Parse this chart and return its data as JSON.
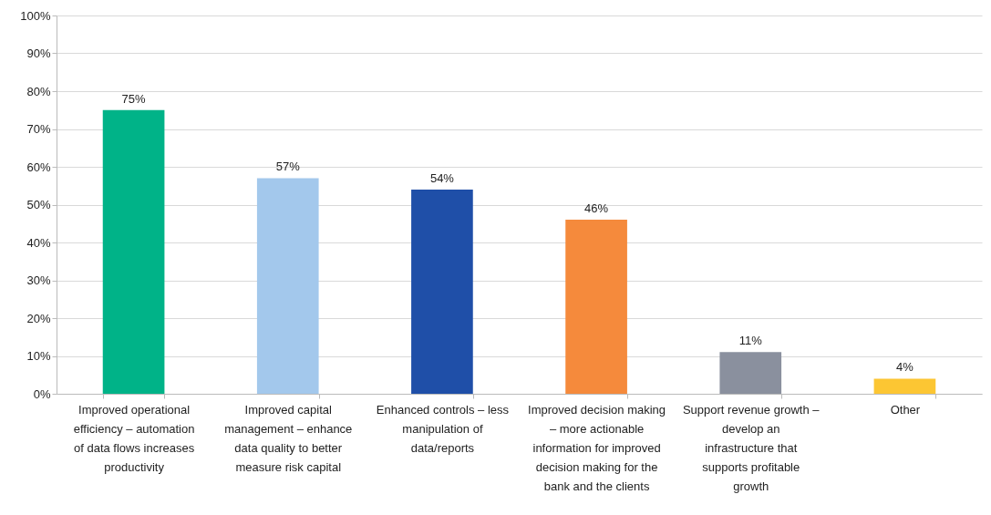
{
  "chart_data": {
    "type": "bar",
    "categories": [
      "Improved operational efficiency – automation of data flows increases productivity",
      "Improved capital management – enhance data quality to better measure risk capital",
      "Enhanced controls – less manipulation of data/reports",
      "Improved decision making – more actionable information for improved decision making for the bank and the clients",
      "Support revenue growth – develop an infrastructure that supports profitable growth",
      "Other"
    ],
    "values": [
      75,
      57,
      54,
      46,
      11,
      4
    ],
    "colors": [
      "#00b388",
      "#a3c8ec",
      "#1f4fa8",
      "#f58a3c",
      "#8a909e",
      "#fcc633"
    ],
    "value_labels": [
      "75%",
      "57%",
      "54%",
      "46%",
      "11%",
      "4%"
    ],
    "ylim": [
      0,
      100
    ],
    "yticks": [
      {
        "value": 0,
        "label": "0%"
      },
      {
        "value": 10,
        "label": "10%"
      },
      {
        "value": 20,
        "label": "20%"
      },
      {
        "value": 30,
        "label": "30%"
      },
      {
        "value": 40,
        "label": "40%"
      },
      {
        "value": 50,
        "label": "50%"
      },
      {
        "value": 60,
        "label": "60%"
      },
      {
        "value": 70,
        "label": "70%"
      },
      {
        "value": 80,
        "label": "80%"
      },
      {
        "value": 90,
        "label": "90%"
      },
      {
        "value": 100,
        "label": "100%"
      }
    ],
    "grid": "y"
  }
}
